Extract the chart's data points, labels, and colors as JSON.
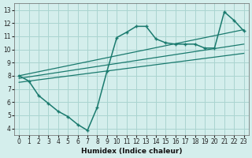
{
  "xlabel": "Humidex (Indice chaleur)",
  "background_color": "#d4eeec",
  "grid_color": "#aad4d0",
  "line_color": "#1a7a6e",
  "xlim": [
    -0.5,
    23.5
  ],
  "ylim": [
    3.5,
    13.5
  ],
  "xtick_labels": [
    "0",
    "1",
    "2",
    "3",
    "4",
    "5",
    "6",
    "7",
    "8",
    "9",
    "10",
    "11",
    "12",
    "13",
    "14",
    "15",
    "16",
    "17",
    "18",
    "19",
    "20",
    "21",
    "22",
    "23"
  ],
  "xtick_vals": [
    0,
    1,
    2,
    3,
    4,
    5,
    6,
    7,
    8,
    9,
    10,
    11,
    12,
    13,
    14,
    15,
    16,
    17,
    18,
    19,
    20,
    21,
    22,
    23
  ],
  "ytick_vals": [
    4,
    5,
    6,
    7,
    8,
    9,
    10,
    11,
    12,
    13
  ],
  "curve_x": [
    0,
    1,
    2,
    3,
    4,
    5,
    6,
    7,
    8,
    9,
    10,
    11,
    12,
    13,
    14,
    15,
    16,
    17,
    18,
    19,
    20,
    21,
    22,
    23
  ],
  "curve_y": [
    8.0,
    7.6,
    6.5,
    5.9,
    5.3,
    4.9,
    4.3,
    3.85,
    5.6,
    8.35,
    10.9,
    11.3,
    11.75,
    11.75,
    10.8,
    10.5,
    10.4,
    10.4,
    10.4,
    10.1,
    10.1,
    12.85,
    12.2,
    11.4
  ],
  "line1_x": [
    0,
    23
  ],
  "line1_y": [
    8.0,
    11.5
  ],
  "line2_x": [
    0,
    23
  ],
  "line2_y": [
    7.8,
    10.4
  ],
  "line3_x": [
    0,
    23
  ],
  "line3_y": [
    7.5,
    9.7
  ]
}
